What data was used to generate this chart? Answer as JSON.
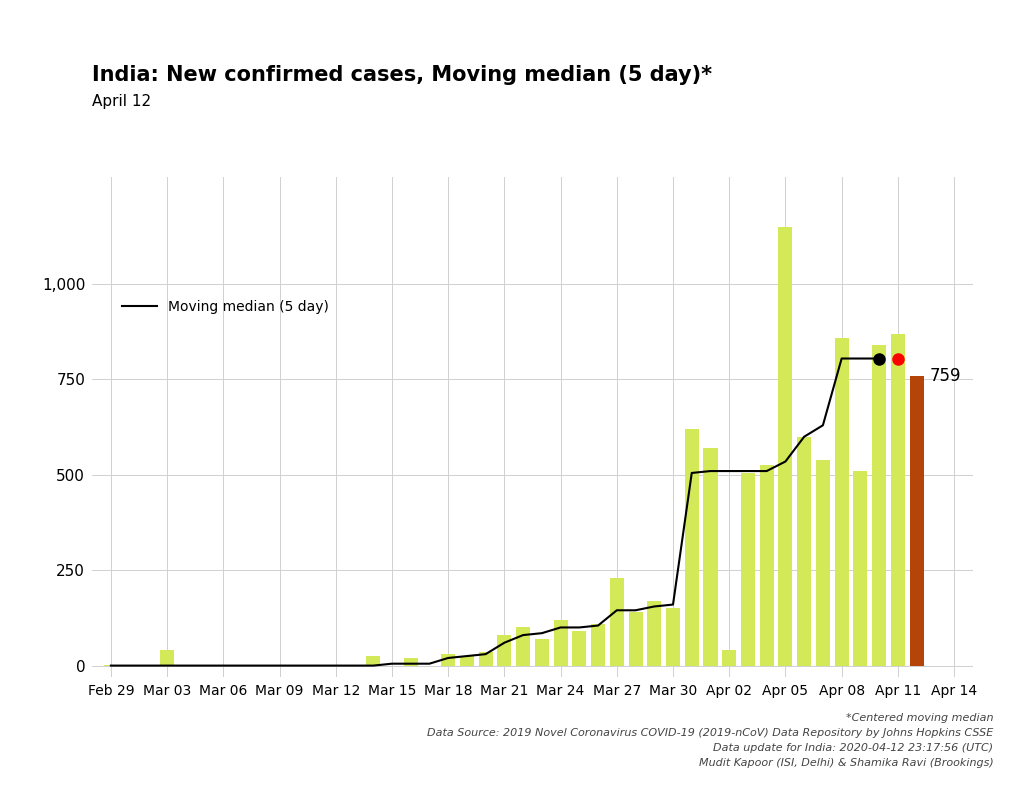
{
  "title": "India: New confirmed cases, Moving median (5 day)*",
  "subtitle": "April 12",
  "bar_values": [
    1,
    0,
    0,
    40,
    0,
    0,
    0,
    0,
    0,
    0,
    0,
    0,
    0,
    0,
    25,
    0,
    20,
    0,
    30,
    25,
    35,
    80,
    100,
    70,
    120,
    90,
    110,
    230,
    140,
    170,
    150,
    620,
    570,
    40,
    505,
    525,
    1150,
    600,
    540,
    860,
    510,
    840,
    870,
    759
  ],
  "bar_colors_flag": [
    "y",
    "y",
    "y",
    "y",
    "y",
    "y",
    "y",
    "y",
    "y",
    "y",
    "y",
    "y",
    "y",
    "y",
    "y",
    "y",
    "y",
    "y",
    "y",
    "y",
    "y",
    "y",
    "y",
    "y",
    "y",
    "y",
    "y",
    "y",
    "y",
    "y",
    "y",
    "y",
    "y",
    "y",
    "y",
    "y",
    "y",
    "y",
    "y",
    "y",
    "y",
    "y",
    "y",
    "brown"
  ],
  "yellow_color": "#d4e957",
  "brown_color": "#b5440a",
  "moving_median_x": [
    0,
    1,
    2,
    3,
    4,
    5,
    6,
    7,
    8,
    9,
    10,
    11,
    12,
    13,
    14,
    15,
    16,
    17,
    18,
    19,
    20,
    21,
    22,
    23,
    24,
    25,
    26,
    27,
    28,
    29,
    30,
    31,
    32,
    33,
    34,
    35,
    36,
    37,
    38,
    39,
    40,
    41
  ],
  "moving_median_y": [
    0,
    0,
    0,
    0,
    0,
    0,
    0,
    0,
    0,
    0,
    0,
    0,
    0,
    0,
    0,
    5,
    5,
    5,
    20,
    25,
    30,
    60,
    80,
    85,
    100,
    100,
    105,
    145,
    145,
    155,
    160,
    505,
    510,
    510,
    510,
    510,
    535,
    600,
    630,
    805,
    805,
    805
  ],
  "last_value_label": "759",
  "dot_black_x": 41,
  "dot_black_y": 805,
  "dot_red_x": 42,
  "dot_red_y": 805,
  "xtick_labels": [
    "Feb 29",
    "Mar 03",
    "Mar 06",
    "Mar 09",
    "Mar 12",
    "Mar 15",
    "Mar 18",
    "Mar 21",
    "Mar 24",
    "Mar 27",
    "Mar 30",
    "Apr 02",
    "Apr 05",
    "Apr 08",
    "Apr 11",
    "Apr 14"
  ],
  "xtick_positions": [
    0,
    3,
    6,
    9,
    12,
    15,
    18,
    21,
    24,
    27,
    30,
    33,
    36,
    39,
    42,
    45
  ],
  "ytick_labels": [
    "0",
    "250",
    "500",
    "750",
    "1,000"
  ],
  "ytick_values": [
    0,
    250,
    500,
    750,
    1000
  ],
  "ylim": [
    -30,
    1280
  ],
  "xlim": [
    -1,
    46
  ],
  "legend_label": "Moving median (5 day)",
  "footer_lines": [
    "*Centered moving median",
    "Data Source: 2019 Novel Coronavirus COVID-19 (2019-nCoV) Data Repository by Johns Hopkins CSSE",
    "Data update for India: 2020-04-12 23:17:56 (UTC)",
    "Mudit Kapoor (ISI, Delhi) & Shamika Ravi (Brookings)"
  ],
  "background_color": "#ffffff",
  "grid_color": "#d0d0d0"
}
